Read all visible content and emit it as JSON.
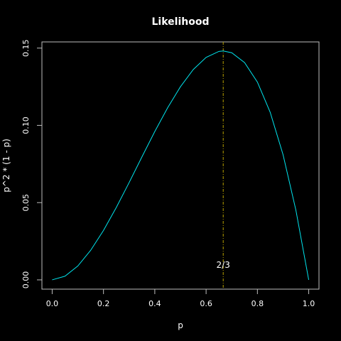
{
  "chart_data": {
    "type": "line",
    "title": "Likelihood",
    "xlabel": "p",
    "ylabel": "p^2 * (1 - p)",
    "xlim": [
      -0.04,
      1.04
    ],
    "ylim": [
      -0.006,
      0.154
    ],
    "x_ticks": [
      0.0,
      0.2,
      0.4,
      0.6,
      0.8,
      1.0
    ],
    "x_tick_labels": [
      "0.0",
      "0.2",
      "0.4",
      "0.6",
      "0.8",
      "1.0"
    ],
    "y_ticks": [
      0.0,
      0.05,
      0.1,
      0.15
    ],
    "y_tick_labels": [
      "0.00",
      "0.05",
      "0.10",
      "0.15"
    ],
    "grid": false,
    "colors": {
      "background": "#000000",
      "foreground": "#ffffff",
      "box": "#bebebe",
      "curve": "#00e5ee",
      "vline": "#b8a000"
    },
    "series": [
      {
        "x": [
          0.0,
          0.05,
          0.1,
          0.15,
          0.2,
          0.25,
          0.3,
          0.35,
          0.4,
          0.45,
          0.5,
          0.55,
          0.6,
          0.65,
          0.6667,
          0.7,
          0.75,
          0.8,
          0.85,
          0.9,
          0.95,
          1.0
        ],
        "y": [
          0.0,
          0.002375,
          0.009,
          0.019125,
          0.032,
          0.046875,
          0.063,
          0.079625,
          0.096,
          0.111375,
          0.125,
          0.136125,
          0.144,
          0.147875,
          0.148148,
          0.147,
          0.140625,
          0.128,
          0.108375,
          0.081,
          0.045125,
          0.0
        ]
      }
    ],
    "vline": {
      "x": 0.6667,
      "style": "dotdash"
    },
    "annotations": [
      {
        "text": "2/3",
        "x": 0.6667,
        "y": 0.01
      }
    ]
  }
}
